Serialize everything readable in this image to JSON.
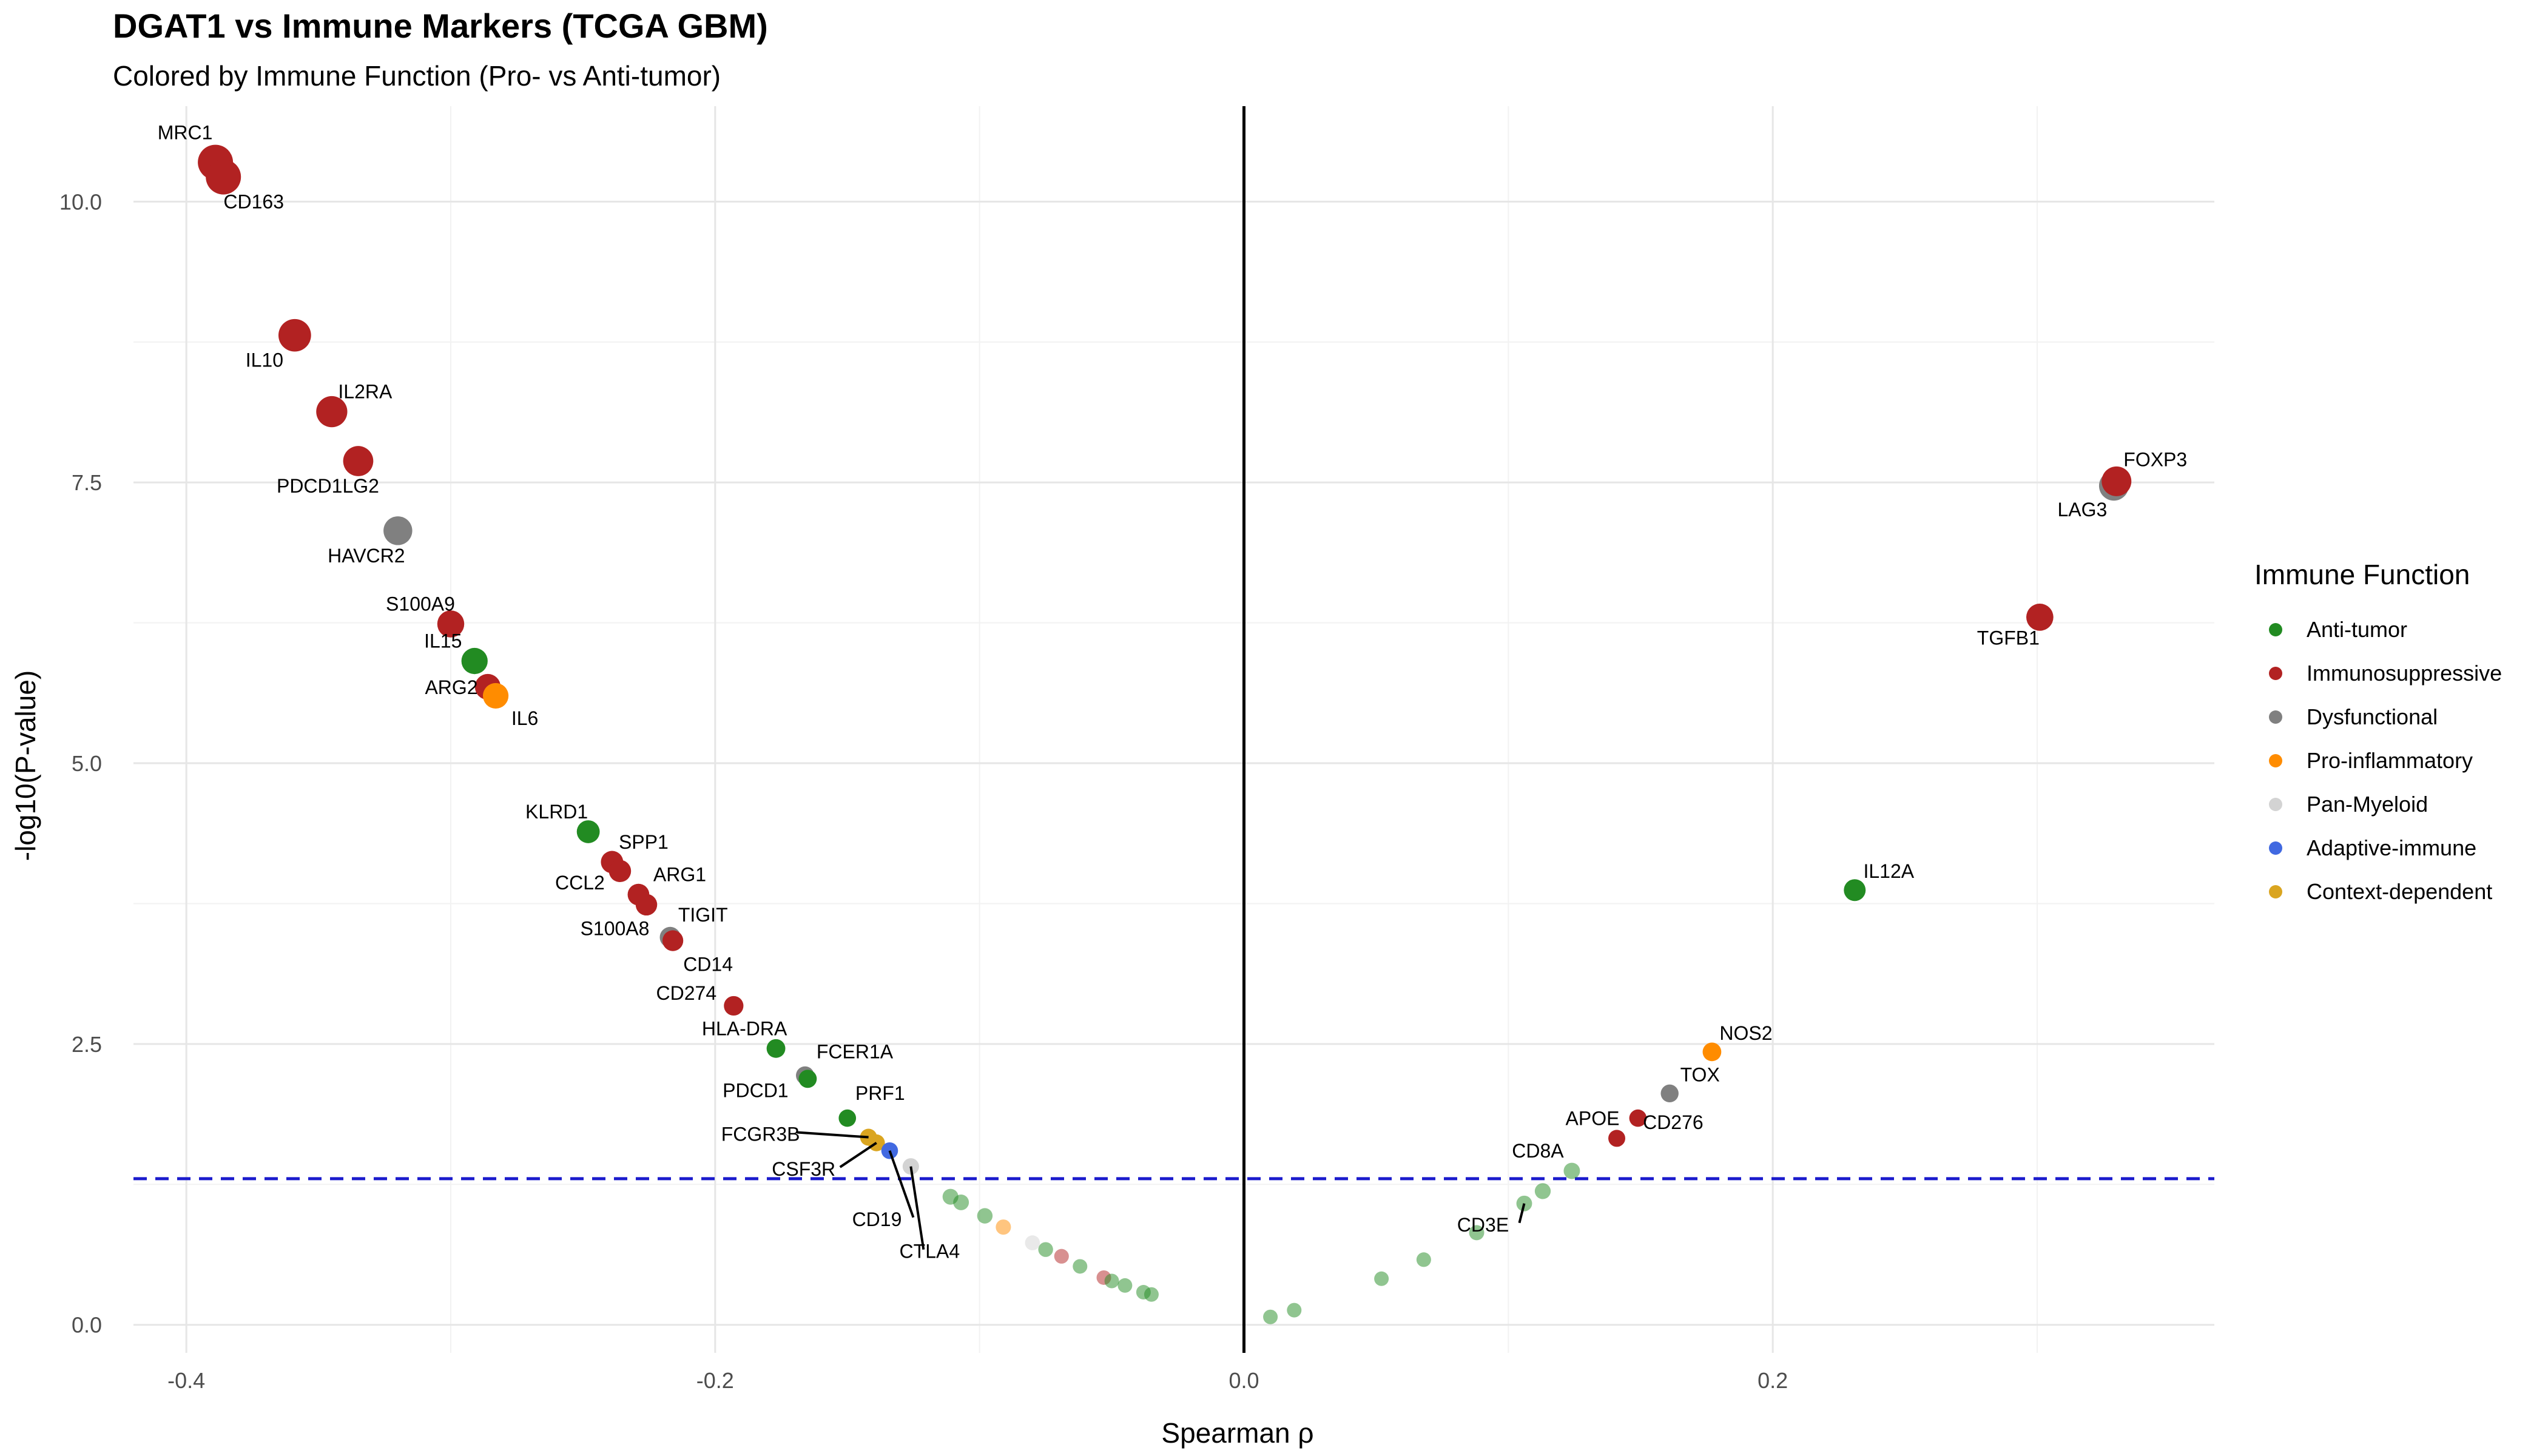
{
  "chart_data": {
    "type": "scatter",
    "title": "DGAT1 vs Immune Markers (TCGA GBM)",
    "subtitle": "Colored by Immune Function (Pro- vs Anti-tumor)",
    "xlabel": "Spearman ρ",
    "ylabel": "-log10(P-value)",
    "xlim": [
      -0.42,
      0.367
    ],
    "ylim": [
      -0.25,
      10.85
    ],
    "x_ticks": [
      -0.4,
      -0.2,
      0.0,
      0.2
    ],
    "x_tick_labels": [
      "-0.4",
      "-0.2",
      "0.0",
      "0.2"
    ],
    "y_ticks": [
      0.0,
      2.5,
      5.0,
      7.5,
      10.0
    ],
    "y_tick_labels": [
      "0.0",
      "2.5",
      "5.0",
      "7.5",
      "10.0"
    ],
    "threshold_y": 1.301,
    "vertical_line_x": 0,
    "grid": true,
    "legend_title": "Immune Function",
    "legend_position": "right",
    "categories": [
      {
        "name": "Anti-tumor",
        "color": "#228B22"
      },
      {
        "name": "Immunosuppressive",
        "color": "#B22222"
      },
      {
        "name": "Dysfunctional",
        "color": "#808080"
      },
      {
        "name": "Pro-inflammatory",
        "color": "#FF8C00"
      },
      {
        "name": "Pan-Myeloid",
        "color": "#D3D3D3"
      },
      {
        "name": "Adaptive-immune",
        "color": "#4169E1"
      },
      {
        "name": "Context-dependent",
        "color": "#DAA520"
      }
    ],
    "points": [
      {
        "label": "MRC1",
        "x": -0.389,
        "y": 10.35,
        "cat": "Immunosuppressive"
      },
      {
        "label": "CD163",
        "x": -0.386,
        "y": 10.22,
        "cat": "Immunosuppressive"
      },
      {
        "label": "IL10",
        "x": -0.359,
        "y": 8.81,
        "cat": "Immunosuppressive"
      },
      {
        "label": "IL2RA",
        "x": -0.345,
        "y": 8.13,
        "cat": "Immunosuppressive"
      },
      {
        "label": "PDCD1LG2",
        "x": -0.335,
        "y": 7.69,
        "cat": "Immunosuppressive"
      },
      {
        "label": "HAVCR2",
        "x": -0.32,
        "y": 7.07,
        "cat": "Dysfunctional"
      },
      {
        "label": "S100A9",
        "x": -0.3,
        "y": 6.24,
        "cat": "Immunosuppressive"
      },
      {
        "label": "IL15",
        "x": -0.291,
        "y": 5.91,
        "cat": "Anti-tumor"
      },
      {
        "label": "ARG2",
        "x": -0.286,
        "y": 5.68,
        "cat": "Immunosuppressive"
      },
      {
        "label": "IL6",
        "x": -0.283,
        "y": 5.6,
        "cat": "Pro-inflammatory"
      },
      {
        "label": "KLRD1",
        "x": -0.248,
        "y": 4.39,
        "cat": "Anti-tumor"
      },
      {
        "label": "SPP1",
        "x": -0.239,
        "y": 4.12,
        "cat": "Immunosuppressive"
      },
      {
        "label": "CCL2",
        "x": -0.236,
        "y": 4.04,
        "cat": "Immunosuppressive"
      },
      {
        "label": "ARG1",
        "x": -0.229,
        "y": 3.83,
        "cat": "Immunosuppressive"
      },
      {
        "label": "S100A8",
        "x": -0.226,
        "y": 3.74,
        "cat": "Immunosuppressive"
      },
      {
        "label": "TIGIT",
        "x": -0.217,
        "y": 3.45,
        "cat": "Dysfunctional"
      },
      {
        "label": "CD14",
        "x": -0.216,
        "y": 3.42,
        "cat": "Immunosuppressive"
      },
      {
        "label": "CD274",
        "x": -0.193,
        "y": 2.84,
        "cat": "Immunosuppressive"
      },
      {
        "label": "HLA-DRA",
        "x": -0.177,
        "y": 2.46,
        "cat": "Anti-tumor"
      },
      {
        "label": "FCER1A",
        "x": -0.166,
        "y": 2.22,
        "cat": "Dysfunctional"
      },
      {
        "label": "PDCD1",
        "x": -0.165,
        "y": 2.19,
        "cat": "Anti-tumor"
      },
      {
        "label": "PRF1",
        "x": -0.15,
        "y": 1.84,
        "cat": "Anti-tumor"
      },
      {
        "label": "FCGR3B",
        "x": -0.142,
        "y": 1.67,
        "cat": "Context-dependent"
      },
      {
        "label": "CSF3R",
        "x": -0.139,
        "y": 1.62,
        "cat": "Context-dependent"
      },
      {
        "label": "CD19",
        "x": -0.134,
        "y": 1.55,
        "cat": "Adaptive-immune"
      },
      {
        "label": "CTLA4",
        "x": -0.126,
        "y": 1.41,
        "cat": "Pan-Myeloid"
      },
      {
        "label": "",
        "x": -0.111,
        "y": 1.14,
        "cat": "Anti-tumor",
        "faded": true
      },
      {
        "label": "",
        "x": -0.107,
        "y": 1.09,
        "cat": "Anti-tumor",
        "faded": true
      },
      {
        "label": "",
        "x": -0.098,
        "y": 0.97,
        "cat": "Anti-tumor",
        "faded": true
      },
      {
        "label": "",
        "x": -0.091,
        "y": 0.87,
        "cat": "Pro-inflammatory",
        "faded": true
      },
      {
        "label": "",
        "x": -0.08,
        "y": 0.73,
        "cat": "Pan-Myeloid",
        "faded": true
      },
      {
        "label": "",
        "x": -0.075,
        "y": 0.67,
        "cat": "Anti-tumor",
        "faded": true
      },
      {
        "label": "",
        "x": -0.069,
        "y": 0.61,
        "cat": "Immunosuppressive",
        "faded": true
      },
      {
        "label": "",
        "x": -0.062,
        "y": 0.52,
        "cat": "Anti-tumor",
        "faded": true
      },
      {
        "label": "",
        "x": -0.053,
        "y": 0.42,
        "cat": "Immunosuppressive",
        "faded": true
      },
      {
        "label": "",
        "x": -0.05,
        "y": 0.39,
        "cat": "Anti-tumor",
        "faded": true
      },
      {
        "label": "",
        "x": -0.045,
        "y": 0.35,
        "cat": "Anti-tumor",
        "faded": true
      },
      {
        "label": "",
        "x": -0.038,
        "y": 0.29,
        "cat": "Anti-tumor",
        "faded": true
      },
      {
        "label": "",
        "x": -0.035,
        "y": 0.27,
        "cat": "Anti-tumor",
        "faded": true
      },
      {
        "label": "",
        "x": 0.01,
        "y": 0.07,
        "cat": "Anti-tumor",
        "faded": true
      },
      {
        "label": "",
        "x": 0.019,
        "y": 0.13,
        "cat": "Anti-tumor",
        "faded": true
      },
      {
        "label": "",
        "x": 0.052,
        "y": 0.41,
        "cat": "Anti-tumor",
        "faded": true
      },
      {
        "label": "",
        "x": 0.068,
        "y": 0.58,
        "cat": "Anti-tumor",
        "faded": true
      },
      {
        "label": "",
        "x": 0.088,
        "y": 0.82,
        "cat": "Anti-tumor",
        "faded": true
      },
      {
        "label": "CD3E",
        "x": 0.106,
        "y": 1.08,
        "cat": "Anti-tumor",
        "faded": true
      },
      {
        "label": "",
        "x": 0.113,
        "y": 1.19,
        "cat": "Anti-tumor",
        "faded": true
      },
      {
        "label": "CD8A",
        "x": 0.124,
        "y": 1.37,
        "cat": "Anti-tumor",
        "faded": true
      },
      {
        "label": "APOE",
        "x": 0.141,
        "y": 1.66,
        "cat": "Immunosuppressive"
      },
      {
        "label": "CD276",
        "x": 0.149,
        "y": 1.84,
        "cat": "Immunosuppressive"
      },
      {
        "label": "TOX",
        "x": 0.161,
        "y": 2.06,
        "cat": "Dysfunctional"
      },
      {
        "label": "NOS2",
        "x": 0.177,
        "y": 2.43,
        "cat": "Pro-inflammatory"
      },
      {
        "label": "IL12A",
        "x": 0.231,
        "y": 3.87,
        "cat": "Anti-tumor"
      },
      {
        "label": "TGFB1",
        "x": 0.301,
        "y": 6.3,
        "cat": "Immunosuppressive"
      },
      {
        "label": "LAG3",
        "x": 0.329,
        "y": 7.47,
        "cat": "Dysfunctional"
      },
      {
        "label": "FOXP3",
        "x": 0.33,
        "y": 7.51,
        "cat": "Immunosuppressive"
      }
    ]
  }
}
